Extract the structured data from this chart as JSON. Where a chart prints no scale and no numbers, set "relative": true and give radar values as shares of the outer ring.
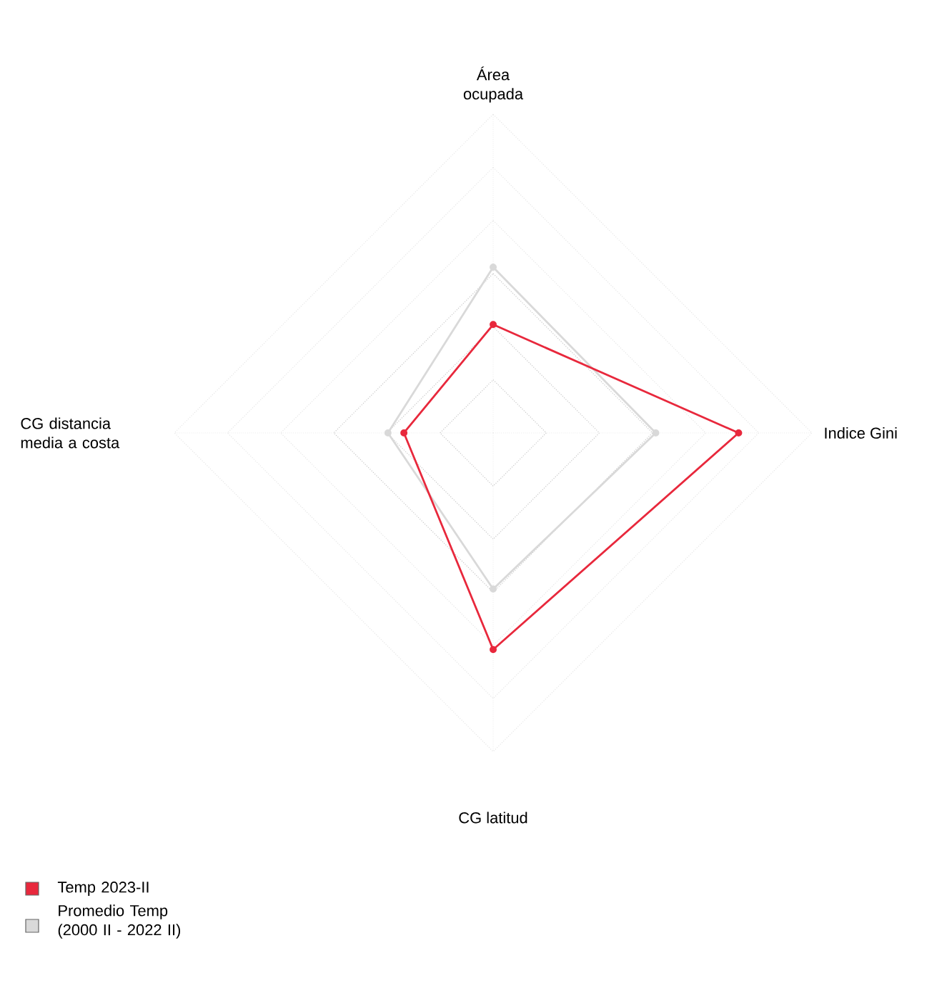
{
  "chart_data": {
    "type": "radar",
    "relative": true,
    "categories": [
      "Área ocupada",
      "Indice Gini",
      "CG latitud",
      "CG distancia media a costa"
    ],
    "series": [
      {
        "name": "Temp 2023-II",
        "color": "#e8283c",
        "values": [
          0.34,
          0.77,
          0.68,
          0.28
        ]
      },
      {
        "name": "Promedio Temp (2000 II - 2022 II)",
        "color": "#d9d9d9",
        "values": [
          0.52,
          0.51,
          0.49,
          0.33
        ]
      }
    ],
    "grid": true,
    "marker": "circle",
    "legend": "bottom left"
  }
}
